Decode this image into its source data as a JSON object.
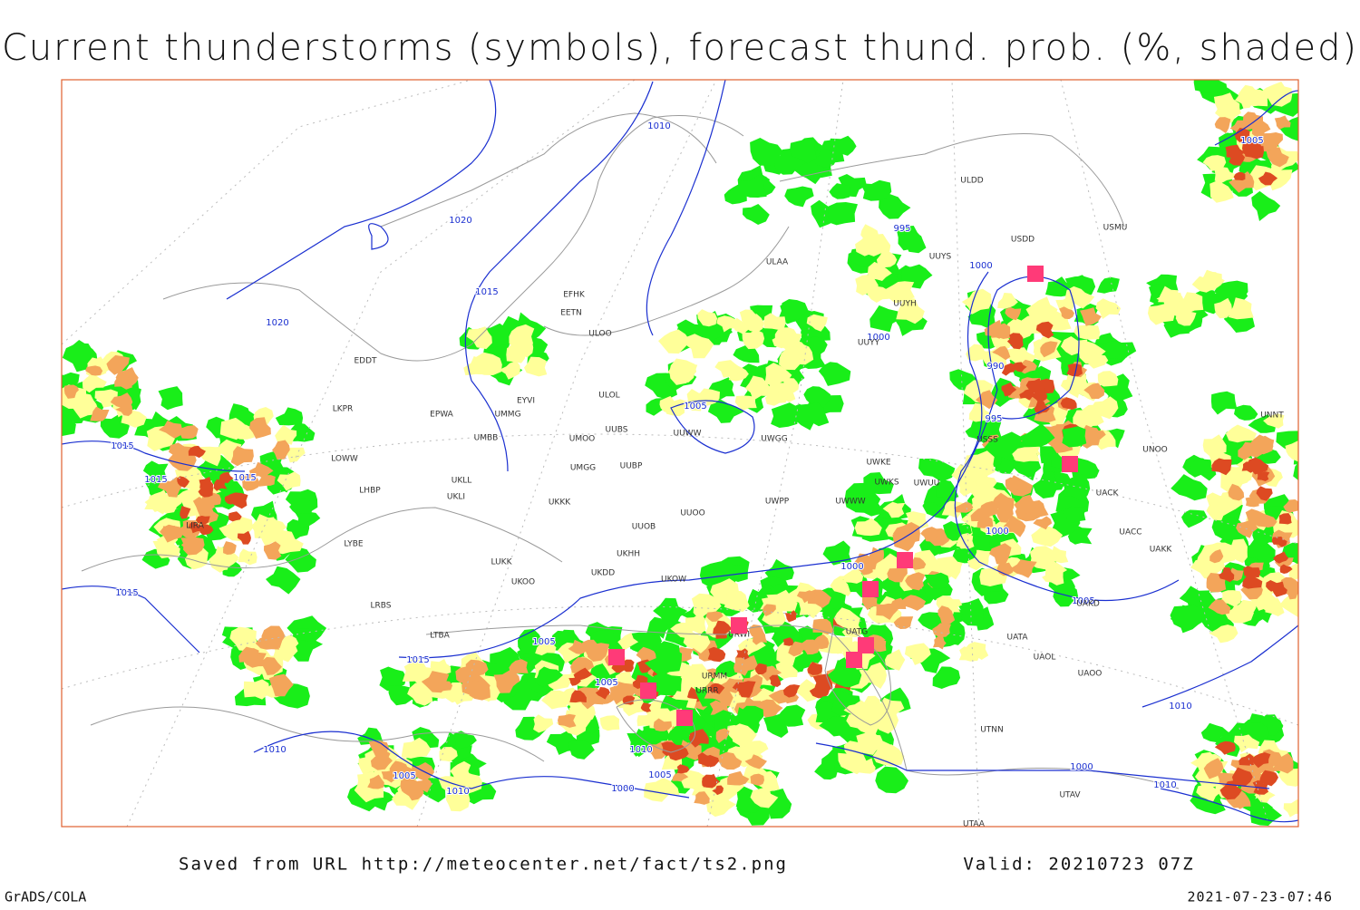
{
  "header": {
    "title": "Current thunderstorms (symbols), forecast thund. prob. (%, shaded)"
  },
  "footer": {
    "saved": "Saved from URL http://meteocenter.net/fact/ts2.png",
    "valid": "Valid: 20210723 07Z",
    "credit": "GrADS/COLA",
    "timestamp": "2021-07-23-07:46"
  },
  "isobar_labels": [
    "1010",
    "1020",
    "1020",
    "1015",
    "1015",
    "1015",
    "1015",
    "1015",
    "1005",
    "1000",
    "995",
    "990",
    "995",
    "1000",
    "1000",
    "1005",
    "1010",
    "1005",
    "1015",
    "1010",
    "1005",
    "1010",
    "1005",
    "1000",
    "1000",
    "1005",
    "1000",
    "1010",
    "1005",
    "1010"
  ],
  "station_labels": [
    "ULDD",
    "ULAA",
    "UUYS",
    "UUYH",
    "UUYY",
    "USDD",
    "EFHK",
    "EETN",
    "ULOO",
    "ULOL",
    "EYVI",
    "EPWA",
    "UMMG",
    "UMBB",
    "UMOO",
    "UUBS",
    "UUWW",
    "UWGG",
    "USSS",
    "UWKE",
    "UWKS",
    "UWUU",
    "UWWW",
    "UWPP",
    "UMGG",
    "UUBP",
    "UKLL",
    "UKLI",
    "UKKK",
    "UUOO",
    "UUOB",
    "UKHH",
    "UKDD",
    "LUKK",
    "UKOO",
    "UKOW",
    "URWI",
    "URMM",
    "URRR",
    "UATG",
    "UATA",
    "UAOL",
    "UAOO",
    "UTNN",
    "UTAA",
    "UTAV",
    "UNOO",
    "UACK",
    "UACC",
    "UAKK",
    "UAKD",
    "UNNT",
    "USMU",
    "EDDT",
    "LKPR",
    "LOWW",
    "LHBP",
    "LYBE",
    "LRBS",
    "LIRA",
    "LTBA"
  ]
}
